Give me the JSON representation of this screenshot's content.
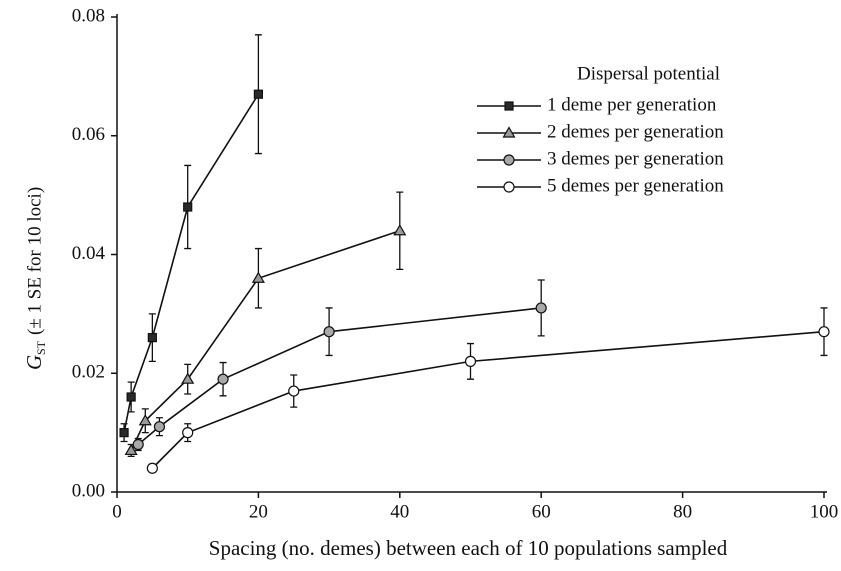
{
  "chart_data": {
    "type": "line",
    "xlabel": "Spacing (no. demes) between each of 10 populations sampled",
    "ylabel_symbol": "G",
    "ylabel_subscript": "ST",
    "ylabel": "(± 1 SE for 10 loci)",
    "legend_title": "Dispersal potential",
    "xlim": [
      0,
      100
    ],
    "xticks": [
      0,
      20,
      40,
      60,
      80,
      100
    ],
    "ylim": [
      0,
      0.08
    ],
    "yticks": [
      {
        "value": 0,
        "label": "0.00"
      },
      0.02,
      0.04,
      0.06,
      0.08
    ],
    "series": [
      {
        "name": "1 deme per generation",
        "marker": "square",
        "color": "#2a2a2a",
        "x": [
          1,
          2,
          5,
          10,
          20
        ],
        "values": [
          0.01,
          0.016,
          0.026,
          0.048,
          0.067
        ],
        "errors": [
          0.0015,
          0.0025,
          0.004,
          0.007,
          0.01
        ]
      },
      {
        "name": "2 demes per generation",
        "marker": "triangle",
        "color": "#9a9a9a",
        "x": [
          2,
          4,
          10,
          20,
          40
        ],
        "values": [
          0.007,
          0.012,
          0.019,
          0.036,
          0.044
        ],
        "errors": [
          0.001,
          0.002,
          0.0025,
          0.005,
          0.0065
        ]
      },
      {
        "name": "3 demes per generation",
        "marker": "circle",
        "color": "#a8a8a8",
        "x": [
          3,
          6,
          15,
          30,
          60
        ],
        "values": [
          0.008,
          0.011,
          0.019,
          0.027,
          0.031
        ],
        "errors": [
          0.001,
          0.0015,
          0.0028,
          0.004,
          0.0047
        ]
      },
      {
        "name": "5 demes per generation",
        "marker": "circle",
        "color": "#ffffff",
        "x": [
          5,
          10,
          25,
          50,
          100
        ],
        "values": [
          0.004,
          0.01,
          0.017,
          0.022,
          0.027
        ],
        "errors": [
          null,
          0.0015,
          0.0027,
          0.003,
          0.004
        ]
      }
    ]
  }
}
